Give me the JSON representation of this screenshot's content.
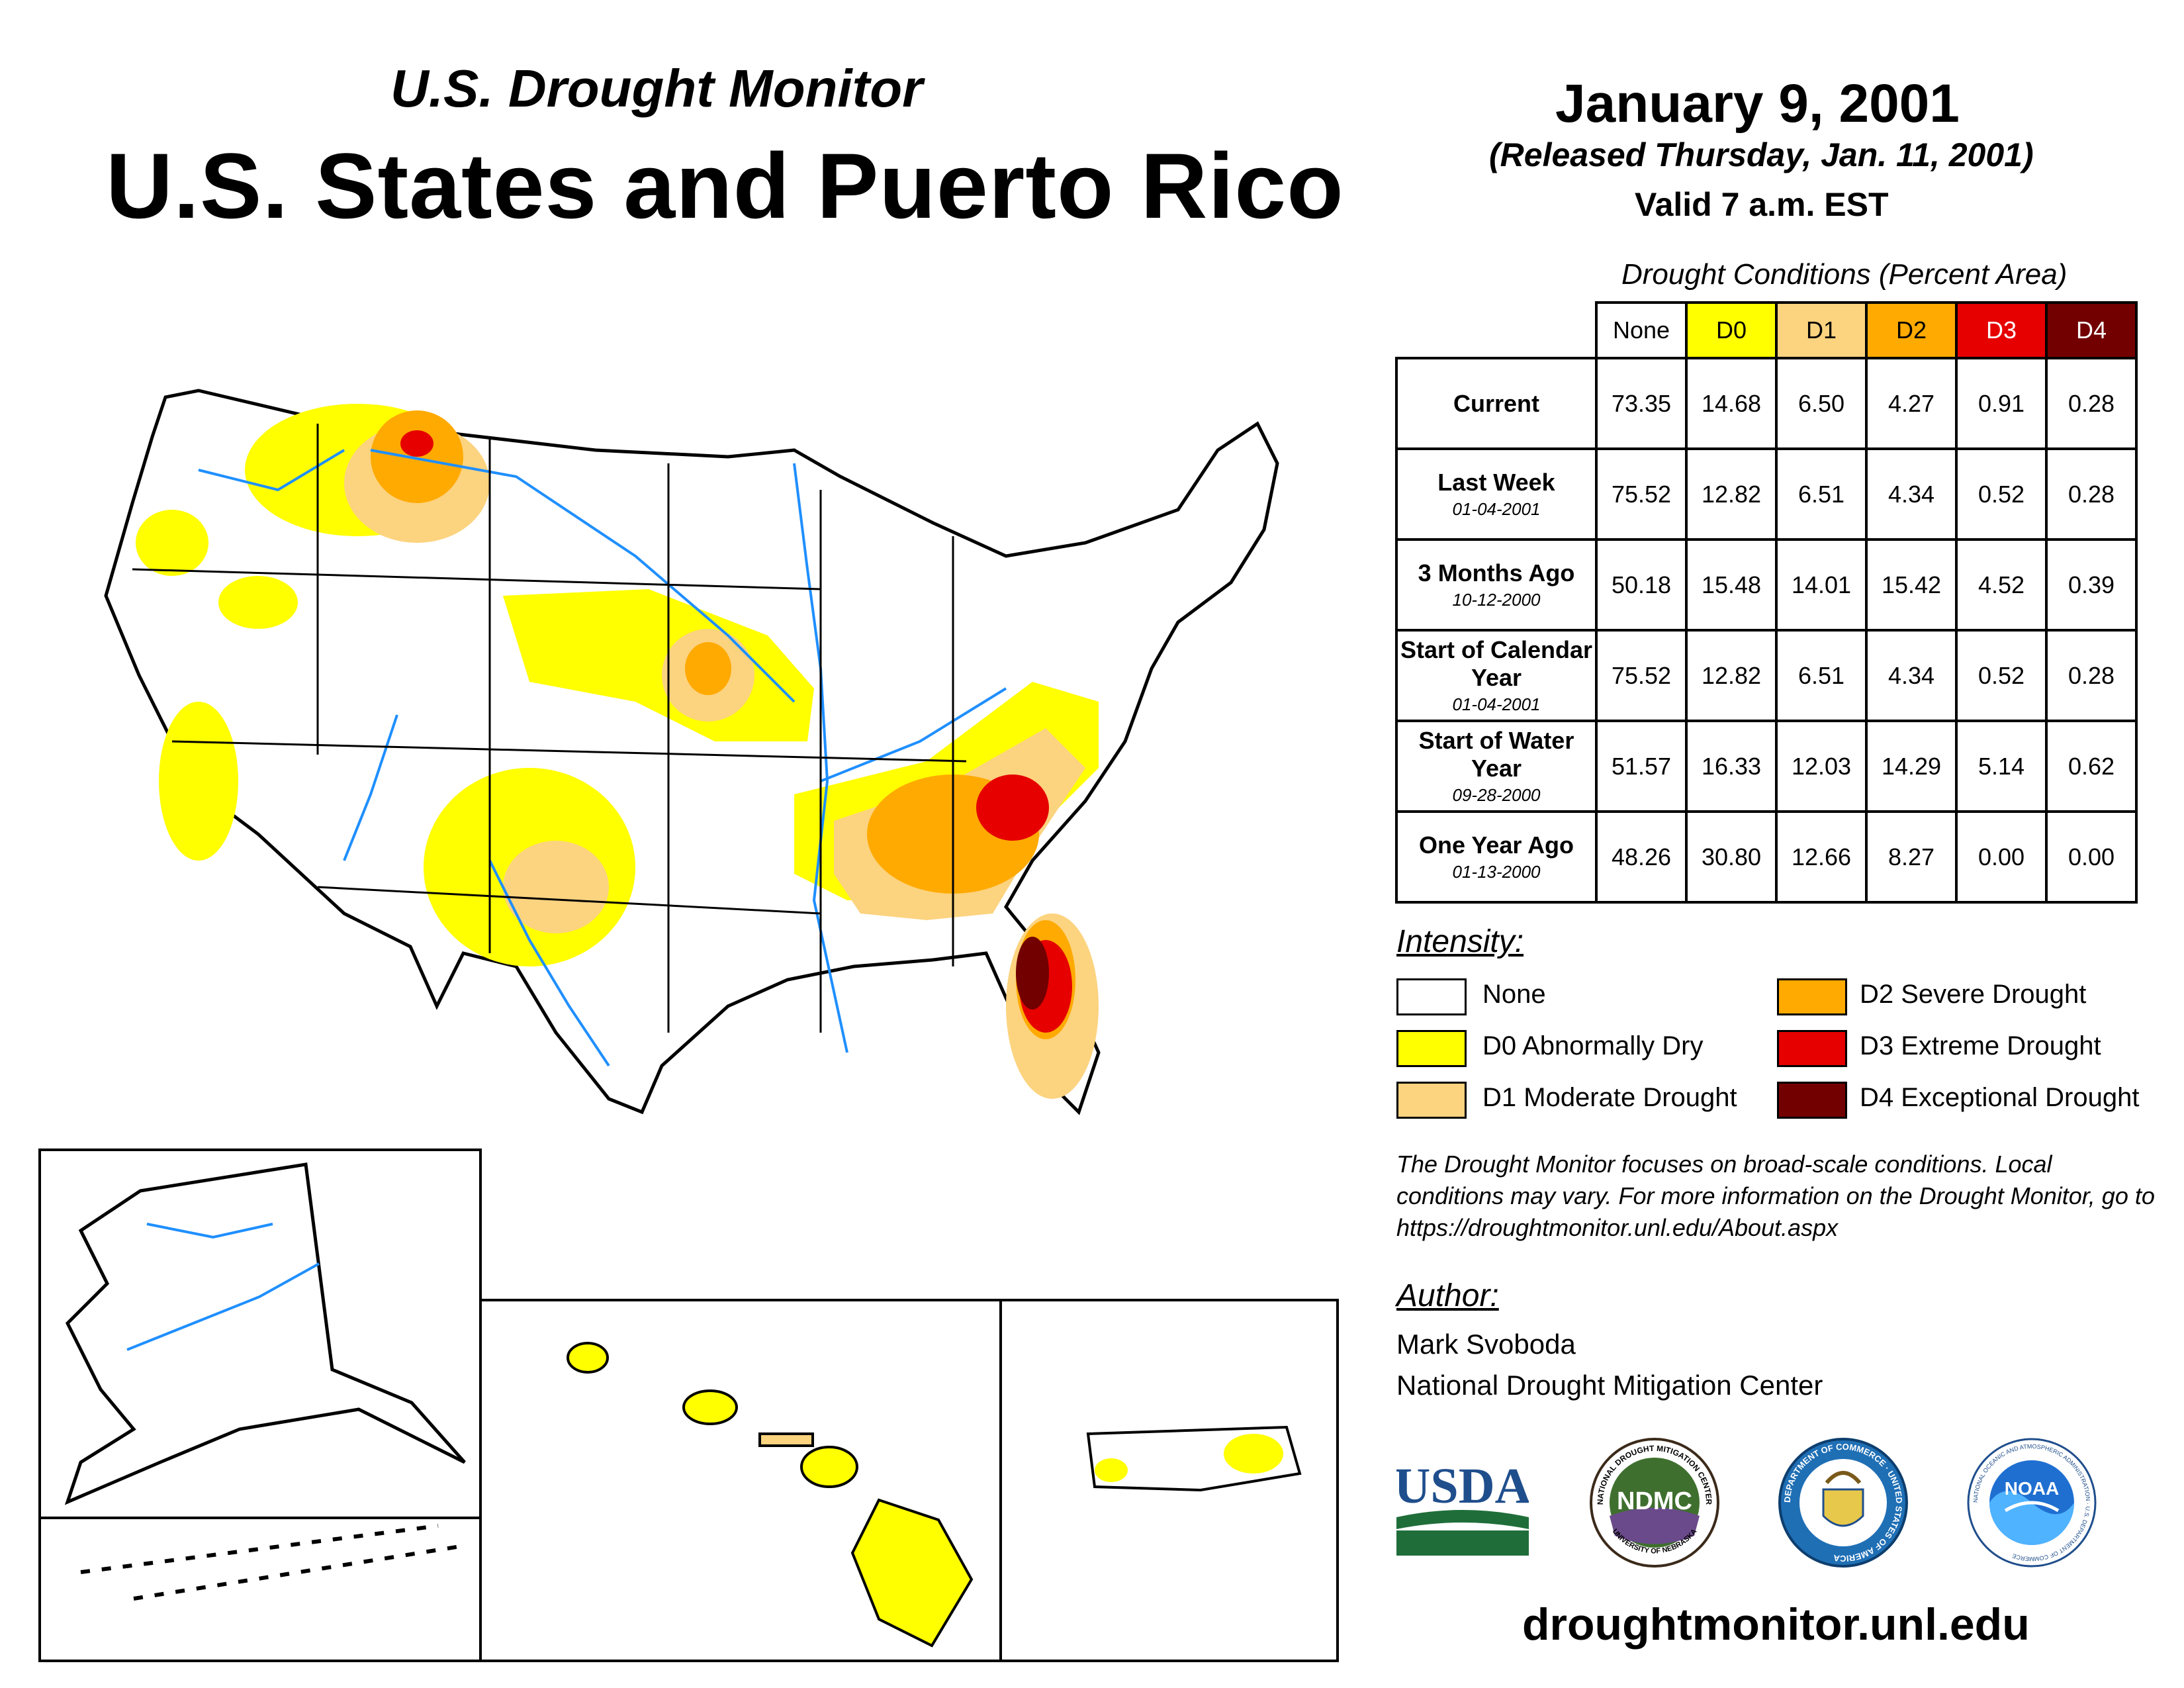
{
  "header": {
    "subtitle": "U.S. Drought Monitor",
    "title": "U.S. States and Puerto Rico",
    "date": "January 9, 2001",
    "released": "(Released Thursday, Jan. 11, 2001)",
    "valid": "Valid 7 a.m. EST"
  },
  "table": {
    "caption": "Drought Conditions (Percent Area)",
    "columns": [
      "None",
      "D0",
      "D1",
      "D2",
      "D3",
      "D4"
    ],
    "rows": [
      {
        "label": "Current",
        "date": "",
        "values": [
          "73.35",
          "14.68",
          "6.50",
          "4.27",
          "0.91",
          "0.28"
        ]
      },
      {
        "label": "Last Week",
        "date": "01-04-2001",
        "values": [
          "75.52",
          "12.82",
          "6.51",
          "4.34",
          "0.52",
          "0.28"
        ]
      },
      {
        "label": "3 Months Ago",
        "date": "10-12-2000",
        "values": [
          "50.18",
          "15.48",
          "14.01",
          "15.42",
          "4.52",
          "0.39"
        ]
      },
      {
        "label": "Start of Calendar Year",
        "date": "01-04-2001",
        "values": [
          "75.52",
          "12.82",
          "6.51",
          "4.34",
          "0.52",
          "0.28"
        ]
      },
      {
        "label": "Start of Water Year",
        "date": "09-28-2000",
        "values": [
          "51.57",
          "16.33",
          "12.03",
          "14.29",
          "5.14",
          "0.62"
        ]
      },
      {
        "label": "One Year Ago",
        "date": "01-13-2000",
        "values": [
          "48.26",
          "30.80",
          "12.66",
          "8.27",
          "0.00",
          "0.00"
        ]
      }
    ]
  },
  "legend": {
    "heading": "Intensity:",
    "items": [
      {
        "label": "None",
        "color": "#ffffff"
      },
      {
        "label": "D0 Abnormally Dry",
        "color": "#ffff00"
      },
      {
        "label": "D1 Moderate Drought",
        "color": "#fcd37f"
      },
      {
        "label": "D2 Severe Drought",
        "color": "#ffaa00"
      },
      {
        "label": "D3 Extreme Drought",
        "color": "#e60000"
      },
      {
        "label": "D4 Exceptional Drought",
        "color": "#730000"
      }
    ]
  },
  "note": "The Drought Monitor focuses on broad-scale conditions. Local conditions may vary. For more information on the Drought Monitor, go to https://droughtmonitor.unl.edu/About.aspx",
  "author": {
    "heading": "Author:",
    "name": "Mark Svoboda",
    "org": "National Drought Mitigation Center"
  },
  "logos": {
    "usda": "USDA",
    "ndmc": "NDMC",
    "ndmc_ring_top": "NATIONAL DROUGHT MITIGATION CENTER",
    "ndmc_ring_bottom": "UNIVERSITY OF NEBRASKA",
    "commerce_ring": "DEPARTMENT OF COMMERCE · UNITED STATES OF AMERICA",
    "noaa": "NOAA",
    "noaa_ring": "NATIONAL OCEANIC AND ATMOSPHERIC ADMINISTRATION · U.S. DEPARTMENT OF COMMERCE"
  },
  "url": "droughtmonitor.unl.edu",
  "colors": {
    "water": "#1f8fff",
    "d0": "#ffff00",
    "d1": "#fcd37f",
    "d2": "#ffaa00",
    "d3": "#e60000",
    "d4": "#730000"
  }
}
